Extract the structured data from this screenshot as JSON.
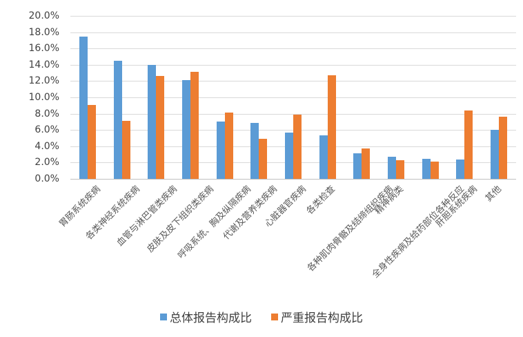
{
  "chart_data": {
    "type": "bar",
    "title": "",
    "xlabel": "",
    "ylabel": "",
    "ylim": [
      0,
      20
    ],
    "y_ticks": [
      "0.0%",
      "2.0%",
      "4.0%",
      "6.0%",
      "8.0%",
      "10.0%",
      "12.0%",
      "14.0%",
      "16.0%",
      "18.0%",
      "20.0%"
    ],
    "grid": true,
    "legend_position": "bottom",
    "categories": [
      "胃肠系统疾病",
      "各类神经系统疾病",
      "血管与淋巴管类疾病",
      "皮肤及皮下组织类疾病",
      "呼吸系统、胸及纵隔疾病",
      "代谢及营养类疾病",
      "心脏器官疾病",
      "各类检查",
      "各种肌肉骨骼及结缔组织疾病",
      "精神病类",
      "全身性疾病及给药部位各种反应",
      "肝胆系统疾病",
      "其他"
    ],
    "series": [
      {
        "name": "总体报告构成比",
        "color": "#5b9bd5",
        "values": [
          17.5,
          14.5,
          14.0,
          12.1,
          7.0,
          6.9,
          5.7,
          5.3,
          3.1,
          2.7,
          2.5,
          2.4,
          6.0
        ]
      },
      {
        "name": "严重报告构成比",
        "color": "#ed7d31",
        "values": [
          9.1,
          7.1,
          12.6,
          13.1,
          8.1,
          4.9,
          7.9,
          12.7,
          3.7,
          2.3,
          2.1,
          8.4,
          7.6
        ]
      }
    ]
  },
  "legend": {
    "items": [
      {
        "label": "总体报告构成比",
        "color": "#5b9bd5"
      },
      {
        "label": "严重报告构成比",
        "color": "#ed7d31"
      }
    ]
  }
}
